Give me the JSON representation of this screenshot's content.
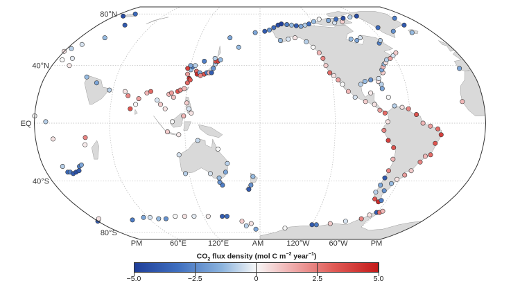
{
  "map": {
    "projection": "robinson",
    "center_longitude": 180,
    "latitude_labels": [
      {
        "lat": 80,
        "text": "80°N"
      },
      {
        "lat": 40,
        "text": "40°N"
      },
      {
        "lat": 0,
        "text": "EQ"
      },
      {
        "lat": -40,
        "text": "40°S"
      },
      {
        "lat": -80,
        "text": "80°S"
      }
    ],
    "longitude_labels": [
      {
        "lon": 0,
        "text": "PM"
      },
      {
        "lon": 60,
        "text": "60°E"
      },
      {
        "lon": 120,
        "text": "120°E"
      },
      {
        "lon": 180,
        "text": "AM"
      },
      {
        "lon": -120,
        "text": "120°W"
      },
      {
        "lon": -60,
        "text": "60°W"
      },
      {
        "lon": 360,
        "text": "PM"
      }
    ],
    "colors": {
      "ocean": "#ffffff",
      "land": "#d9d9d9",
      "coast": "#9a9a9a",
      "grid": "#b5b5b5",
      "frame": "#333333"
    }
  },
  "colorbar": {
    "title_prefix": "CO",
    "title_sub": "2",
    "title_mid": " flux density (mol C m",
    "title_sup1": "−2",
    "title_mid2": " year",
    "title_sup2": "−1",
    "title_suffix": ")",
    "min": -5.0,
    "max": 5.0,
    "ticks": [
      {
        "value": -5.0,
        "label": "−5.0"
      },
      {
        "value": -2.5,
        "label": "−2.5"
      },
      {
        "value": 0,
        "label": "0"
      },
      {
        "value": 2.5,
        "label": "2.5"
      },
      {
        "value": 5.0,
        "label": "5.0"
      }
    ],
    "stops": [
      "#1f3e99",
      "#3f6fbf",
      "#8cb4de",
      "#f7f7f7",
      "#f0b0b0",
      "#e05a55",
      "#c31a1a"
    ]
  },
  "sites": [
    {
      "lon": 10,
      "lat": 78,
      "v": -4.5
    },
    {
      "lon": 20,
      "lat": 80,
      "v": -3.5
    },
    {
      "lon": 30,
      "lat": 70,
      "v": -4
    },
    {
      "lon": 4,
      "lat": 52,
      "v": -1
    },
    {
      "lon": 0,
      "lat": 50,
      "v": 0.5
    },
    {
      "lon": 10,
      "lat": 55,
      "v": -0.5
    },
    {
      "lon": 25,
      "lat": 60,
      "v": -1.5
    },
    {
      "lon": 5,
      "lat": 44,
      "v": 0
    },
    {
      "lon": 13,
      "lat": 45,
      "v": -0.3
    },
    {
      "lon": 15,
      "lat": 40,
      "v": 0.4
    },
    {
      "lon": -9,
      "lat": 38,
      "v": -2
    },
    {
      "lon": 35,
      "lat": 32,
      "v": -1.5
    },
    {
      "lon": 45,
      "lat": 28,
      "v": -2
    },
    {
      "lon": -17,
      "lat": 15,
      "v": 1.5
    },
    {
      "lon": 9,
      "lat": 1,
      "v": -1
    },
    {
      "lon": 0,
      "lat": 5,
      "v": 0
    },
    {
      "lon": 14,
      "lat": -11,
      "v": 0.5
    },
    {
      "lon": 40,
      "lat": -10,
      "v": 2.5
    },
    {
      "lon": 39,
      "lat": -15,
      "v": 0.3
    },
    {
      "lon": 18,
      "lat": -34,
      "v": -3.5
    },
    {
      "lon": 20,
      "lat": -34,
      "v": -3
    },
    {
      "lon": 22,
      "lat": -35,
      "v": -4
    },
    {
      "lon": 25,
      "lat": -34,
      "v": -4.5
    },
    {
      "lon": 28,
      "lat": -33,
      "v": -4
    },
    {
      "lon": 16,
      "lat": -30,
      "v": -1
    },
    {
      "lon": 30,
      "lat": -30,
      "v": -3
    },
    {
      "lon": 32,
      "lat": -29,
      "v": -2
    },
    {
      "lon": 57,
      "lat": 23,
      "v": -1
    },
    {
      "lon": 70,
      "lat": 22,
      "v": 0.5
    },
    {
      "lon": 73,
      "lat": 19,
      "v": 2.5
    },
    {
      "lon": 76,
      "lat": 10,
      "v": 3.5
    },
    {
      "lon": 80,
      "lat": 13,
      "v": 0
    },
    {
      "lon": 82,
      "lat": 17,
      "v": 2
    },
    {
      "lon": 88,
      "lat": 21,
      "v": 1.5
    },
    {
      "lon": 91,
      "lat": 22,
      "v": 3
    },
    {
      "lon": 97,
      "lat": 16,
      "v": -0.5
    },
    {
      "lon": 100,
      "lat": 13,
      "v": 1
    },
    {
      "lon": 104,
      "lat": 10,
      "v": 0.5
    },
    {
      "lon": 106,
      "lat": 20,
      "v": 1.5
    },
    {
      "lon": 108,
      "lat": 21,
      "v": 2
    },
    {
      "lon": 110,
      "lat": 18,
      "v": 1.2
    },
    {
      "lon": 113,
      "lat": 22,
      "v": 3.5
    },
    {
      "lon": 115,
      "lat": 23,
      "v": 2.5
    },
    {
      "lon": 118,
      "lat": 24,
      "v": 1.5
    },
    {
      "lon": 120,
      "lat": 28,
      "v": 3
    },
    {
      "lon": 121,
      "lat": 31,
      "v": 4.5
    },
    {
      "lon": 122,
      "lat": 30,
      "v": 3.5
    },
    {
      "lon": 119,
      "lat": 34,
      "v": 2
    },
    {
      "lon": 121,
      "lat": 37,
      "v": -1.5
    },
    {
      "lon": 122,
      "lat": 39,
      "v": -3
    },
    {
      "lon": 120,
      "lat": 40,
      "v": -2
    },
    {
      "lon": 118,
      "lat": 38,
      "v": 4
    },
    {
      "lon": 124,
      "lat": 40,
      "v": -1
    },
    {
      "lon": 126,
      "lat": 36,
      "v": 3
    },
    {
      "lon": 127,
      "lat": 34,
      "v": 4.5
    },
    {
      "lon": 129,
      "lat": 35,
      "v": -2
    },
    {
      "lon": 130,
      "lat": 33,
      "v": 2.5
    },
    {
      "lon": 133,
      "lat": 34,
      "v": 3.5
    },
    {
      "lon": 135,
      "lat": 35,
      "v": -3
    },
    {
      "lon": 137,
      "lat": 35,
      "v": 1.5
    },
    {
      "lon": 139,
      "lat": 35,
      "v": -4
    },
    {
      "lon": 140,
      "lat": 38,
      "v": -2.5
    },
    {
      "lon": 141,
      "lat": 41,
      "v": -1
    },
    {
      "lon": 141,
      "lat": 43,
      "v": 3.5
    },
    {
      "lon": 143,
      "lat": 43,
      "v": 4
    },
    {
      "lon": 145,
      "lat": 44,
      "v": -1.5
    },
    {
      "lon": 131,
      "lat": 43,
      "v": -3
    },
    {
      "lon": 121,
      "lat": 14,
      "v": 1
    },
    {
      "lon": 123,
      "lat": 10,
      "v": -0.5
    },
    {
      "lon": 125,
      "lat": 7,
      "v": 0.5
    },
    {
      "lon": 119,
      "lat": 5,
      "v": 1.5
    },
    {
      "lon": 110,
      "lat": 1,
      "v": 0
    },
    {
      "lon": 115,
      "lat": -8,
      "v": 0.3
    },
    {
      "lon": 106,
      "lat": -6,
      "v": 1
    },
    {
      "lon": 140,
      "lat": 45,
      "v": -1
    },
    {
      "lon": 114,
      "lat": -22,
      "v": -0.5
    },
    {
      "lon": 117,
      "lat": -35,
      "v": -1
    },
    {
      "lon": 130,
      "lat": -12,
      "v": -0.8
    },
    {
      "lon": 138,
      "lat": -35,
      "v": -0.5
    },
    {
      "lon": 145,
      "lat": -38,
      "v": -1.5
    },
    {
      "lon": 147,
      "lat": -43,
      "v": -3
    },
    {
      "lon": 151,
      "lat": -34,
      "v": -2
    },
    {
      "lon": 153,
      "lat": -28,
      "v": -1
    },
    {
      "lon": 146,
      "lat": -18,
      "v": 0
    },
    {
      "lon": 145,
      "lat": -41,
      "v": -2.5
    },
    {
      "lon": 174,
      "lat": -37,
      "v": -1.5
    },
    {
      "lon": 172,
      "lat": -43,
      "v": -2.5
    },
    {
      "lon": 170,
      "lat": -46,
      "v": -4
    },
    {
      "lon": 150,
      "lat": 60,
      "v": -2
    },
    {
      "lon": 160,
      "lat": 53,
      "v": -1.5
    },
    {
      "lon": 175,
      "lat": 64,
      "v": -2
    },
    {
      "lon": -175,
      "lat": 65,
      "v": -4
    },
    {
      "lon": -170,
      "lat": 66,
      "v": -2.5
    },
    {
      "lon": -165,
      "lat": 68,
      "v": -3.5
    },
    {
      "lon": -160,
      "lat": 70,
      "v": -4.5
    },
    {
      "lon": -156,
      "lat": 71,
      "v": -5
    },
    {
      "lon": -150,
      "lat": 70.5,
      "v": -3
    },
    {
      "lon": -145,
      "lat": 70,
      "v": -1.5
    },
    {
      "lon": -140,
      "lat": 69.5,
      "v": -4
    },
    {
      "lon": -135,
      "lat": 69,
      "v": -2
    },
    {
      "lon": -130,
      "lat": 70,
      "v": -1
    },
    {
      "lon": -125,
      "lat": 71,
      "v": -3.5
    },
    {
      "lon": -118,
      "lat": 73,
      "v": -1.5
    },
    {
      "lon": -110,
      "lat": 75,
      "v": 0
    },
    {
      "lon": -100,
      "lat": 74,
      "v": -2
    },
    {
      "lon": -95,
      "lat": 72,
      "v": -0.5
    },
    {
      "lon": -85,
      "lat": 73,
      "v": 1
    },
    {
      "lon": -90,
      "lat": 75,
      "v": -3.5
    },
    {
      "lon": -80,
      "lat": 76,
      "v": -4.5
    },
    {
      "lon": -70,
      "lat": 77,
      "v": -1
    },
    {
      "lon": -60,
      "lat": 78,
      "v": -4.5
    },
    {
      "lon": -52,
      "lat": 68,
      "v": -3.5
    },
    {
      "lon": -40,
      "lat": 65,
      "v": -2.5
    },
    {
      "lon": -20,
      "lat": 70,
      "v": -4
    },
    {
      "lon": -22,
      "lat": 64,
      "v": -1.5
    },
    {
      "lon": -18,
      "lat": 76,
      "v": -3
    },
    {
      "lon": -160,
      "lat": 58,
      "v": -1.5
    },
    {
      "lon": -152,
      "lat": 59,
      "v": -0.5
    },
    {
      "lon": -145,
      "lat": 60,
      "v": 0.5
    },
    {
      "lon": -135,
      "lat": 57,
      "v": -1
    },
    {
      "lon": -130,
      "lat": 53,
      "v": 0
    },
    {
      "lon": -126,
      "lat": 49,
      "v": 1.5
    },
    {
      "lon": -124,
      "lat": 45,
      "v": 2.5
    },
    {
      "lon": -123,
      "lat": 40,
      "v": 1
    },
    {
      "lon": -121,
      "lat": 35,
      "v": 3
    },
    {
      "lon": -118,
      "lat": 33,
      "v": 0.5
    },
    {
      "lon": -115,
      "lat": 30,
      "v": 2
    },
    {
      "lon": -112,
      "lat": 27,
      "v": 0
    },
    {
      "lon": -108,
      "lat": 22,
      "v": 1.5
    },
    {
      "lon": -103,
      "lat": 18,
      "v": -0.5
    },
    {
      "lon": -95,
      "lat": 15,
      "v": 1
    },
    {
      "lon": -88,
      "lat": 13,
      "v": 0.5
    },
    {
      "lon": -84,
      "lat": 9,
      "v": 2
    },
    {
      "lon": -80,
      "lat": 7,
      "v": 3
    },
    {
      "lon": -78,
      "lat": 1,
      "v": 0.5
    },
    {
      "lon": -81,
      "lat": -5,
      "v": 2.5
    },
    {
      "lon": -77,
      "lat": -12,
      "v": 4
    },
    {
      "lon": -72,
      "lat": -17,
      "v": 3.5
    },
    {
      "lon": -71,
      "lat": -25,
      "v": 1.5
    },
    {
      "lon": -72,
      "lat": -33,
      "v": 2.5
    },
    {
      "lon": -73,
      "lat": -38,
      "v": -4
    },
    {
      "lon": -74,
      "lat": -43,
      "v": -2
    },
    {
      "lon": -75,
      "lat": -48,
      "v": -1
    },
    {
      "lon": -72,
      "lat": -53,
      "v": 3.5
    },
    {
      "lon": -67,
      "lat": -55,
      "v": 4.5
    },
    {
      "lon": -65,
      "lat": -54,
      "v": -3
    },
    {
      "lon": -68,
      "lat": -47,
      "v": -2.5
    },
    {
      "lon": -65,
      "lat": -42,
      "v": -1.5
    },
    {
      "lon": -62,
      "lat": -39,
      "v": 0.5
    },
    {
      "lon": -57,
      "lat": -36,
      "v": 2
    },
    {
      "lon": -53,
      "lat": -33,
      "v": 1
    },
    {
      "lon": -48,
      "lat": -27,
      "v": 2.5
    },
    {
      "lon": -45,
      "lat": -23,
      "v": 1.5
    },
    {
      "lon": -41,
      "lat": -22,
      "v": 3
    },
    {
      "lon": -39,
      "lat": -14,
      "v": 3.5
    },
    {
      "lon": -35,
      "lat": -8,
      "v": 4
    },
    {
      "lon": -38,
      "lat": -4,
      "v": 3
    },
    {
      "lon": -44,
      "lat": -2,
      "v": 2
    },
    {
      "lon": -50,
      "lat": 0,
      "v": 1.5
    },
    {
      "lon": -55,
      "lat": 6,
      "v": 3.5
    },
    {
      "lon": -61,
      "lat": 10,
      "v": 2.5
    },
    {
      "lon": -66,
      "lat": 11,
      "v": 0.5
    },
    {
      "lon": -72,
      "lat": 12,
      "v": -1
    },
    {
      "lon": -76,
      "lat": 18,
      "v": 0
    },
    {
      "lon": -80,
      "lat": 24,
      "v": -2
    },
    {
      "lon": -80,
      "lat": 27,
      "v": -1
    },
    {
      "lon": -82,
      "lat": 29,
      "v": 0.5
    },
    {
      "lon": -88,
      "lat": 30,
      "v": -2.5
    },
    {
      "lon": -93,
      "lat": 29,
      "v": -1.5
    },
    {
      "lon": -97,
      "lat": 27,
      "v": -1
    },
    {
      "lon": -90,
      "lat": 21,
      "v": 0.3
    },
    {
      "lon": -81,
      "lat": 31,
      "v": -0.5
    },
    {
      "lon": -76,
      "lat": 35,
      "v": 1
    },
    {
      "lon": -76,
      "lat": 37,
      "v": -2
    },
    {
      "lon": -74,
      "lat": 39,
      "v": 1.5
    },
    {
      "lon": -72,
      "lat": 41,
      "v": -1.5
    },
    {
      "lon": -70,
      "lat": 42,
      "v": 0.5
    },
    {
      "lon": -68,
      "lat": 44,
      "v": -1
    },
    {
      "lon": -64,
      "lat": 45,
      "v": 2
    },
    {
      "lon": -60,
      "lat": 47,
      "v": -0.5
    },
    {
      "lon": -56,
      "lat": 49,
      "v": 1
    },
    {
      "lon": -65,
      "lat": 56,
      "v": -3
    },
    {
      "lon": -62,
      "lat": 58,
      "v": -1
    },
    {
      "lon": -85,
      "lat": 58,
      "v": -2
    },
    {
      "lon": -80,
      "lat": 60,
      "v": -0.5
    },
    {
      "lon": -90,
      "lat": 59,
      "v": -1.5
    },
    {
      "lon": 40,
      "lat": -69,
      "v": -3
    },
    {
      "lon": 55,
      "lat": -67,
      "v": -2
    },
    {
      "lon": 62,
      "lat": -67,
      "v": -0.5
    },
    {
      "lon": 70,
      "lat": -68,
      "v": -1.5
    },
    {
      "lon": 78,
      "lat": -68,
      "v": -2.5
    },
    {
      "lon": 90,
      "lat": -66,
      "v": 0
    },
    {
      "lon": 100,
      "lat": -66,
      "v": 0.5
    },
    {
      "lon": 110,
      "lat": -66,
      "v": -0.3
    },
    {
      "lon": 125,
      "lat": -66,
      "v": 0.2
    },
    {
      "lon": 140,
      "lat": -66,
      "v": -4
    },
    {
      "lon": 145,
      "lat": -66,
      "v": -3.5
    },
    {
      "lon": 160,
      "lat": -70,
      "v": 1
    },
    {
      "lon": 164,
      "lat": -74,
      "v": -1
    },
    {
      "lon": 170,
      "lat": -72,
      "v": 0.5
    },
    {
      "lon": 175,
      "lat": -77,
      "v": -2
    },
    {
      "lon": -150,
      "lat": -76,
      "v": 0
    },
    {
      "lon": -120,
      "lat": -73,
      "v": -4
    },
    {
      "lon": -115,
      "lat": -73,
      "v": -3
    },
    {
      "lon": -100,
      "lat": -72,
      "v": 1
    },
    {
      "lon": -85,
      "lat": -70,
      "v": -0.5
    },
    {
      "lon": -70,
      "lat": -68,
      "v": 2.5
    },
    {
      "lon": -65,
      "lat": -65,
      "v": 0.5
    },
    {
      "lon": -60,
      "lat": -63,
      "v": -4
    },
    {
      "lon": -57,
      "lat": -63,
      "v": 3
    },
    {
      "lon": -55,
      "lat": -62,
      "v": 1.5
    },
    {
      "lon": 0,
      "lat": -70,
      "v": -4
    },
    {
      "lon": 5,
      "lat": -68,
      "v": 0.5
    }
  ]
}
